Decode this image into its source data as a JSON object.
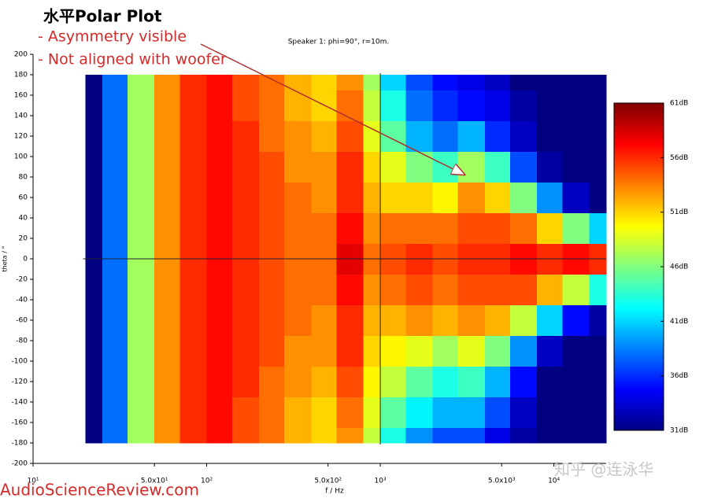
{
  "chart_data": {
    "type": "heatmap",
    "title": "水平Polar Plot",
    "subtitle": "Speaker 1: phi=90°, r=10m.",
    "annotations": [
      "- Asymmetry visible",
      "- Not aligned with woofer"
    ],
    "source": "AudioScienceReview.com",
    "watermark": "知乎 @连泳华",
    "xlabel": "f / Hz",
    "ylabel": "theta / °",
    "xscale": "log",
    "xlim": [
      10,
      20000
    ],
    "xticks": [
      {
        "value": 10,
        "label": "10¹"
      },
      {
        "value": 50,
        "label": "5.0x10¹"
      },
      {
        "value": 100,
        "label": "10²"
      },
      {
        "value": 500,
        "label": "5.0x10²"
      },
      {
        "value": 1000,
        "label": "10³"
      },
      {
        "value": 5000,
        "label": "5.0x10³"
      },
      {
        "value": 10000,
        "label": "10⁴"
      }
    ],
    "ylim": [
      -200,
      200
    ],
    "yticks": [
      -200,
      -180,
      -160,
      -140,
      -120,
      -100,
      -80,
      -60,
      -40,
      -20,
      0,
      20,
      40,
      60,
      80,
      100,
      120,
      140,
      160,
      180,
      200
    ],
    "xbins": [
      20,
      25,
      35,
      50,
      70,
      100,
      140,
      200,
      280,
      400,
      560,
      800,
      1000,
      1400,
      2000,
      2800,
      4000,
      5600,
      8000,
      11200,
      16000,
      20000
    ],
    "ybins": [
      -180,
      -165,
      -135,
      -105,
      -75,
      -45,
      -15,
      15,
      45,
      75,
      105,
      135,
      165,
      180
    ],
    "values": [
      [
        31,
        38,
        47,
        53,
        56,
        57,
        55,
        54,
        52,
        51,
        53,
        48,
        43,
        39,
        37,
        37,
        34,
        32,
        31,
        31,
        31
      ],
      [
        31,
        38,
        47,
        53,
        56,
        57,
        55,
        54,
        52,
        51,
        54,
        49,
        45,
        42,
        40,
        40,
        37,
        33,
        31,
        31,
        31
      ],
      [
        31,
        38,
        47,
        53,
        56,
        57,
        56,
        54,
        53,
        52,
        55,
        50,
        48,
        45,
        43,
        44,
        40,
        35,
        31,
        31,
        31
      ],
      [
        31,
        38,
        47,
        53,
        56,
        57,
        56,
        55,
        53,
        53,
        56,
        51,
        50,
        49,
        47,
        49,
        46,
        39,
        33,
        31,
        31
      ],
      [
        31,
        38,
        47,
        53,
        56,
        57,
        56,
        55,
        54,
        53,
        56,
        52,
        52,
        53,
        52,
        53,
        52,
        48,
        41,
        35,
        32
      ],
      [
        31,
        38,
        47,
        53,
        56,
        57,
        56,
        55,
        54,
        54,
        57,
        53,
        54,
        55,
        54,
        55,
        55,
        55,
        52,
        48,
        43
      ],
      [
        31,
        38,
        47,
        53,
        56,
        57,
        56,
        55,
        54,
        54,
        58,
        54,
        55,
        56,
        55,
        56,
        56,
        57,
        56,
        57,
        56
      ],
      [
        31,
        38,
        47,
        53,
        56,
        57,
        56,
        55,
        54,
        54,
        57,
        53,
        54,
        54,
        54,
        55,
        55,
        54,
        51,
        46,
        41
      ],
      [
        31,
        38,
        47,
        53,
        56,
        57,
        56,
        55,
        54,
        53,
        56,
        52,
        51,
        51,
        50,
        53,
        51,
        46,
        39,
        33,
        31
      ],
      [
        31,
        38,
        47,
        53,
        56,
        57,
        56,
        55,
        53,
        53,
        56,
        51,
        49,
        46,
        44,
        47,
        44,
        37,
        32,
        31,
        31
      ],
      [
        31,
        38,
        47,
        53,
        56,
        57,
        56,
        54,
        53,
        52,
        55,
        49,
        45,
        40,
        38,
        40,
        36,
        33,
        31,
        31,
        31
      ],
      [
        31,
        38,
        47,
        53,
        56,
        57,
        55,
        54,
        52,
        51,
        54,
        48,
        43,
        38,
        36,
        35,
        34,
        32,
        31,
        31,
        31
      ],
      [
        31,
        38,
        47,
        53,
        56,
        57,
        55,
        54,
        52,
        51,
        53,
        47,
        41,
        37,
        35,
        34,
        33,
        31,
        31,
        31,
        31
      ]
    ],
    "colorbar": {
      "colormap": "jet",
      "clim": [
        31,
        61
      ],
      "ticks": [
        {
          "value": 61,
          "label": "61dB"
        },
        {
          "value": 56,
          "label": "56dB"
        },
        {
          "value": 51,
          "label": "51dB"
        },
        {
          "value": 46,
          "label": "46dB"
        },
        {
          "value": 41,
          "label": "41dB"
        },
        {
          "value": 36,
          "label": "36dB"
        },
        {
          "value": 31,
          "label": "31dB"
        }
      ]
    }
  }
}
